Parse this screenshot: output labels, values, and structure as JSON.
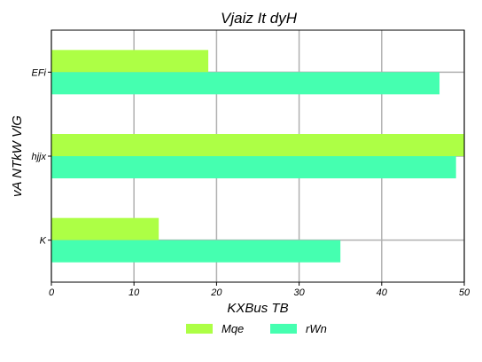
{
  "chart_data": {
    "type": "bar",
    "orientation": "horizontal",
    "title": "Vjaiz  It  dyH",
    "xlabel": "KXBus TB",
    "ylabel": "vA NTkW VlG",
    "categories": [
      "EFi",
      "hjjx",
      "K"
    ],
    "series": [
      {
        "name": "Mqe",
        "color": "#adff45",
        "values": [
          19,
          50,
          13
        ]
      },
      {
        "name": "rWn",
        "color": "#45ffb0",
        "values": [
          47,
          49,
          35
        ]
      }
    ],
    "xlim": [
      0,
      50
    ],
    "xticks": [
      0,
      10,
      20,
      30,
      40,
      50
    ],
    "grid": true,
    "legend_position": "bottom-center"
  }
}
